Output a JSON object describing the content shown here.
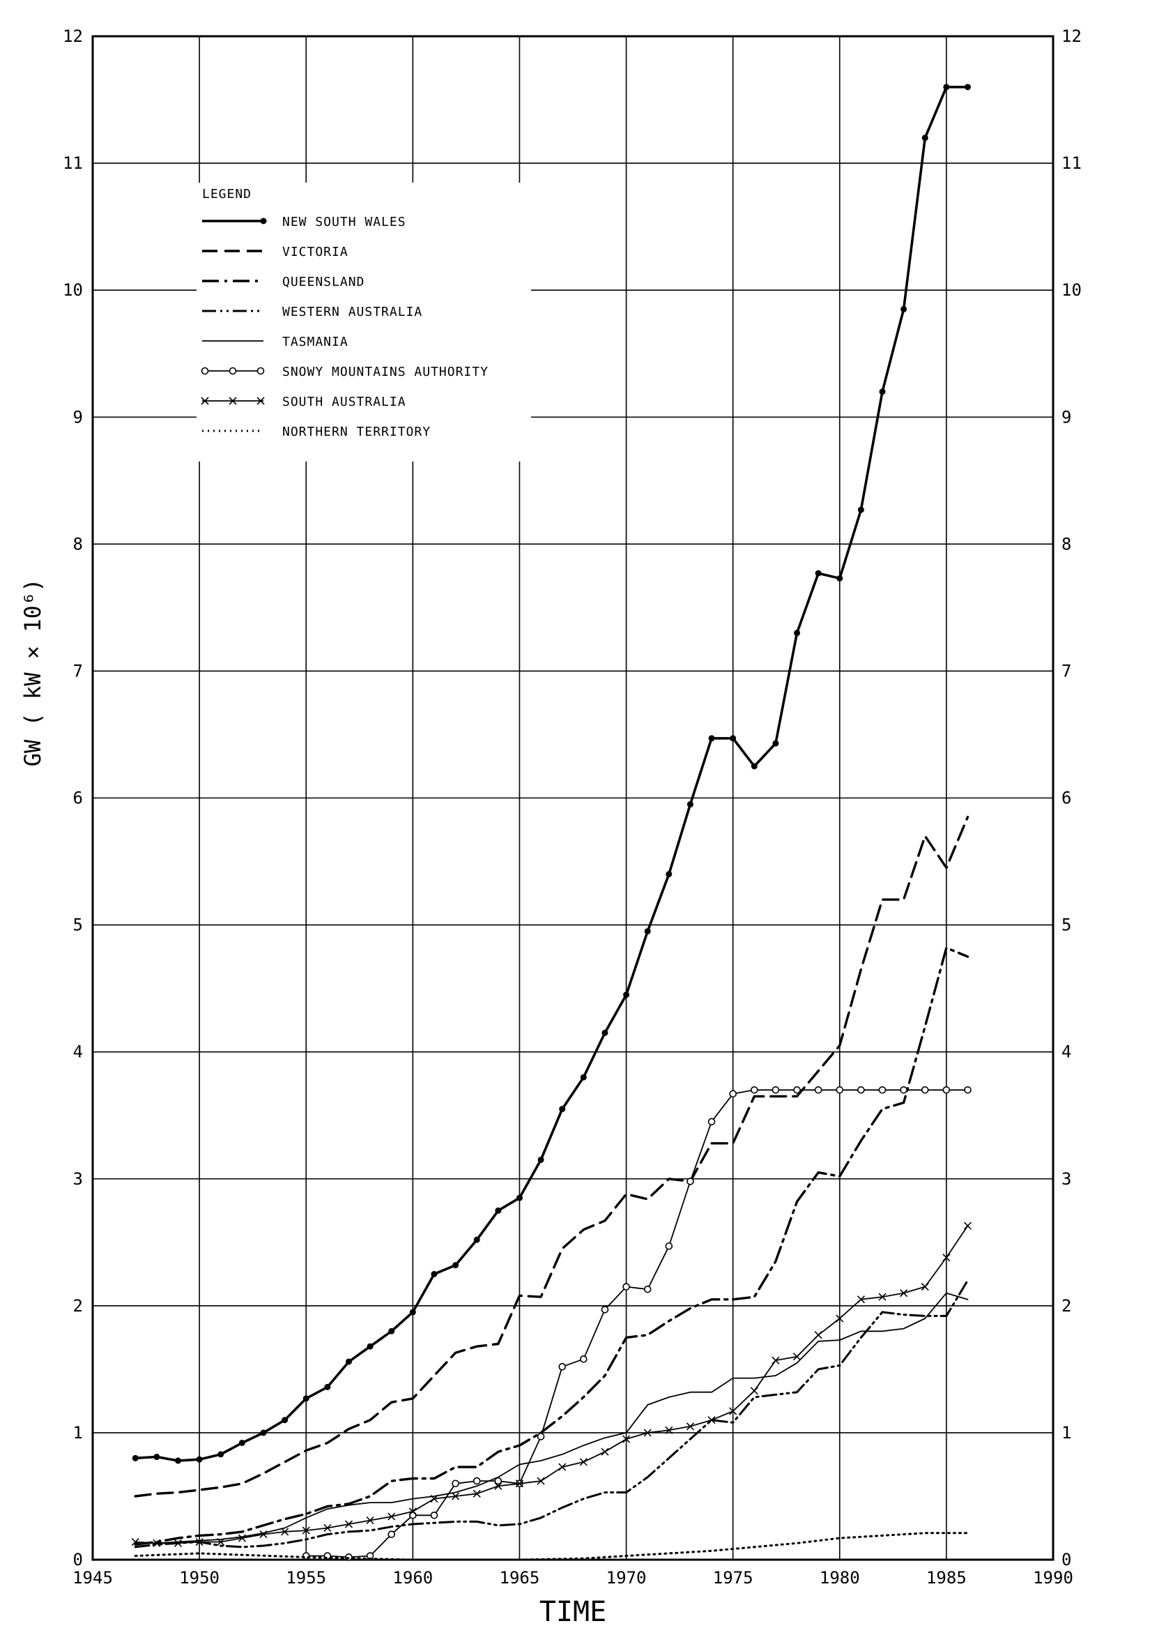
{
  "chart_data": {
    "type": "line",
    "title": "",
    "xlabel": "TIME",
    "ylabel": "GW ( kW × 10⁶)",
    "xlim": [
      1945,
      1990
    ],
    "ylim": [
      0,
      12
    ],
    "x_ticks": [
      1945,
      1950,
      1955,
      1960,
      1965,
      1970,
      1975,
      1980,
      1985,
      1990
    ],
    "y_ticks": [
      0,
      1,
      2,
      3,
      4,
      5,
      6,
      7,
      8,
      9,
      10,
      11,
      12
    ],
    "grid": true,
    "legend_title": "LEGEND",
    "legend_position": "top-left",
    "series": [
      {
        "name": "NEW SOUTH WALES",
        "style": "solid-thick-dot",
        "x": [
          1947,
          1948,
          1949,
          1950,
          1951,
          1952,
          1953,
          1954,
          1955,
          1956,
          1957,
          1958,
          1959,
          1960,
          1961,
          1962,
          1963,
          1964,
          1965,
          1966,
          1967,
          1968,
          1969,
          1970,
          1971,
          1972,
          1973,
          1974,
          1975,
          1976,
          1977,
          1978,
          1979,
          1980,
          1981,
          1982,
          1983,
          1984,
          1985,
          1986
        ],
        "y": [
          0.8,
          0.81,
          0.78,
          0.79,
          0.83,
          0.92,
          1.0,
          1.1,
          1.27,
          1.36,
          1.56,
          1.68,
          1.8,
          1.95,
          2.25,
          2.32,
          2.52,
          2.75,
          2.85,
          3.15,
          3.55,
          3.8,
          4.15,
          4.45,
          4.95,
          5.4,
          5.95,
          6.47,
          6.47,
          6.25,
          6.43,
          7.3,
          7.77,
          7.73,
          8.27,
          9.2,
          9.85,
          11.2,
          11.6,
          11.6
        ]
      },
      {
        "name": "VICTORIA",
        "style": "dashed-thick",
        "x": [
          1947,
          1948,
          1949,
          1950,
          1951,
          1952,
          1953,
          1954,
          1955,
          1956,
          1957,
          1958,
          1959,
          1960,
          1961,
          1962,
          1963,
          1964,
          1965,
          1966,
          1967,
          1968,
          1969,
          1970,
          1971,
          1972,
          1973,
          1974,
          1975,
          1976,
          1977,
          1978,
          1979,
          1980,
          1981,
          1982,
          1983,
          1984,
          1985,
          1986
        ],
        "y": [
          0.5,
          0.52,
          0.53,
          0.55,
          0.57,
          0.6,
          0.68,
          0.77,
          0.86,
          0.92,
          1.03,
          1.1,
          1.24,
          1.27,
          1.45,
          1.63,
          1.68,
          1.7,
          2.08,
          2.07,
          2.45,
          2.6,
          2.67,
          2.88,
          2.84,
          3.0,
          2.98,
          3.28,
          3.28,
          3.65,
          3.65,
          3.65,
          3.85,
          4.05,
          4.65,
          5.2,
          5.2,
          5.7,
          5.45,
          5.85
        ]
      },
      {
        "name": "QUEENSLAND",
        "style": "dashdot-thick",
        "x": [
          1947,
          1948,
          1949,
          1950,
          1951,
          1952,
          1953,
          1954,
          1955,
          1956,
          1957,
          1958,
          1959,
          1960,
          1961,
          1962,
          1963,
          1964,
          1965,
          1966,
          1967,
          1968,
          1969,
          1970,
          1971,
          1972,
          1973,
          1974,
          1975,
          1976,
          1977,
          1978,
          1979,
          1980,
          1981,
          1982,
          1983,
          1984,
          1985,
          1986
        ],
        "y": [
          0.12,
          0.14,
          0.17,
          0.19,
          0.2,
          0.22,
          0.27,
          0.32,
          0.36,
          0.42,
          0.44,
          0.5,
          0.62,
          0.64,
          0.64,
          0.73,
          0.73,
          0.85,
          0.9,
          1.0,
          1.13,
          1.28,
          1.45,
          1.75,
          1.77,
          1.88,
          1.98,
          2.05,
          2.05,
          2.07,
          2.35,
          2.82,
          3.05,
          3.02,
          3.3,
          3.55,
          3.6,
          4.2,
          4.82,
          4.75
        ]
      },
      {
        "name": "WESTERN AUSTRALIA",
        "style": "dashdotdot-thick",
        "x": [
          1947,
          1948,
          1949,
          1950,
          1951,
          1952,
          1953,
          1954,
          1955,
          1956,
          1957,
          1958,
          1959,
          1960,
          1961,
          1962,
          1963,
          1964,
          1965,
          1966,
          1967,
          1968,
          1969,
          1970,
          1971,
          1972,
          1973,
          1974,
          1975,
          1976,
          1977,
          1978,
          1979,
          1980,
          1981,
          1982,
          1983,
          1984,
          1985,
          1986
        ],
        "y": [
          0.1,
          0.12,
          0.13,
          0.14,
          0.11,
          0.1,
          0.11,
          0.13,
          0.16,
          0.2,
          0.22,
          0.23,
          0.26,
          0.28,
          0.29,
          0.3,
          0.3,
          0.27,
          0.28,
          0.33,
          0.41,
          0.48,
          0.53,
          0.53,
          0.65,
          0.8,
          0.95,
          1.1,
          1.08,
          1.28,
          1.3,
          1.32,
          1.5,
          1.53,
          1.75,
          1.95,
          1.93,
          1.92,
          1.92,
          2.2
        ]
      },
      {
        "name": "TASMANIA",
        "style": "solid-thin",
        "x": [
          1947,
          1948,
          1949,
          1950,
          1951,
          1952,
          1953,
          1954,
          1955,
          1956,
          1957,
          1958,
          1959,
          1960,
          1961,
          1962,
          1963,
          1964,
          1965,
          1966,
          1967,
          1968,
          1969,
          1970,
          1971,
          1972,
          1973,
          1974,
          1975,
          1976,
          1977,
          1978,
          1979,
          1980,
          1981,
          1982,
          1983,
          1984,
          1985,
          1986
        ],
        "y": [
          0.13,
          0.13,
          0.14,
          0.15,
          0.16,
          0.18,
          0.21,
          0.25,
          0.33,
          0.4,
          0.43,
          0.45,
          0.45,
          0.48,
          0.5,
          0.53,
          0.58,
          0.65,
          0.75,
          0.78,
          0.83,
          0.9,
          0.96,
          1.0,
          1.22,
          1.28,
          1.32,
          1.32,
          1.43,
          1.43,
          1.45,
          1.55,
          1.72,
          1.73,
          1.8,
          1.8,
          1.82,
          1.9,
          2.1,
          2.05
        ]
      },
      {
        "name": "SNOWY MOUNTAINS AUTHORITY",
        "style": "solid-open-circle",
        "x": [
          1955,
          1956,
          1957,
          1958,
          1959,
          1960,
          1961,
          1962,
          1963,
          1964,
          1965,
          1966,
          1967,
          1968,
          1969,
          1970,
          1971,
          1972,
          1973,
          1974,
          1975,
          1976,
          1977,
          1978,
          1979,
          1980,
          1981,
          1982,
          1983,
          1984,
          1985,
          1986
        ],
        "y": [
          0.03,
          0.03,
          0.02,
          0.03,
          0.2,
          0.35,
          0.35,
          0.6,
          0.62,
          0.62,
          0.6,
          0.97,
          1.52,
          1.58,
          1.97,
          2.15,
          2.13,
          2.47,
          2.98,
          3.45,
          3.67,
          3.7,
          3.7,
          3.7,
          3.7,
          3.7,
          3.7,
          3.7,
          3.7,
          3.7,
          3.7,
          3.7
        ]
      },
      {
        "name": "SOUTH AUSTRALIA",
        "style": "solid-cross",
        "x": [
          1947,
          1948,
          1949,
          1950,
          1951,
          1952,
          1953,
          1954,
          1955,
          1956,
          1957,
          1958,
          1959,
          1960,
          1961,
          1962,
          1963,
          1964,
          1965,
          1966,
          1967,
          1968,
          1969,
          1970,
          1971,
          1972,
          1973,
          1974,
          1975,
          1976,
          1977,
          1978,
          1979,
          1980,
          1981,
          1982,
          1983,
          1984,
          1985,
          1986
        ],
        "y": [
          0.14,
          0.13,
          0.13,
          0.14,
          0.14,
          0.17,
          0.2,
          0.22,
          0.23,
          0.25,
          0.28,
          0.31,
          0.34,
          0.38,
          0.48,
          0.5,
          0.52,
          0.58,
          0.6,
          0.62,
          0.73,
          0.77,
          0.85,
          0.95,
          1.0,
          1.02,
          1.05,
          1.1,
          1.17,
          1.33,
          1.57,
          1.6,
          1.77,
          1.9,
          2.05,
          2.07,
          2.1,
          2.15,
          2.38,
          2.63
        ]
      },
      {
        "name": "NORTHERN TERRITORY",
        "style": "dotted",
        "x": [
          1947,
          1950,
          1955,
          1960,
          1965,
          1968,
          1970,
          1972,
          1974,
          1976,
          1978,
          1980,
          1982,
          1984,
          1986
        ],
        "y": [
          0.03,
          0.05,
          0.02,
          0.0,
          0.0,
          0.01,
          0.03,
          0.05,
          0.07,
          0.1,
          0.13,
          0.17,
          0.19,
          0.21,
          0.21
        ]
      }
    ]
  }
}
